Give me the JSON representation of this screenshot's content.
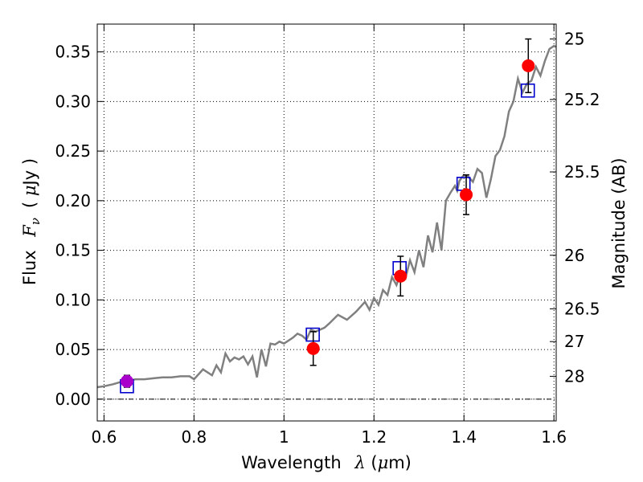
{
  "chart_data": {
    "type": "scatter",
    "title": "",
    "xlabel": {
      "prefix": "Wavelength",
      "symbol": "λ",
      "unit_open": " (",
      "unit_mu": "μ",
      "unit_rest": "m)"
    },
    "ylabel": {
      "prefix": "Flux",
      "symbol": "F",
      "sub": "ν",
      "unit_open": "( ",
      "unit_mu": "μ",
      "unit_rest": "Jy )"
    },
    "y2label": "Magnitude (AB)",
    "xlim": [
      0.585,
      1.605
    ],
    "ylim": [
      -0.022,
      0.378
    ],
    "x_ticks": [
      0.6,
      0.8,
      1.0,
      1.2,
      1.4,
      1.6
    ],
    "x_tick_labels": [
      "0.6",
      "0.8",
      "1",
      "1.2",
      "1.4",
      "1.6"
    ],
    "y_ticks": [
      0.0,
      0.05,
      0.1,
      0.15,
      0.2,
      0.25,
      0.3,
      0.35
    ],
    "y_tick_labels": [
      "0.00",
      "0.05",
      "0.10",
      "0.15",
      "0.20",
      "0.25",
      "0.30",
      "0.35"
    ],
    "mag_ticks": [
      {
        "label": "25",
        "flux": 0.363
      },
      {
        "label": "25.2",
        "flux": 0.302
      },
      {
        "label": "25.5",
        "flux": 0.229
      },
      {
        "label": "26",
        "flux": 0.145
      },
      {
        "label": "26.5",
        "flux": 0.091
      },
      {
        "label": "27",
        "flux": 0.058
      },
      {
        "label": "28",
        "flux": 0.023
      }
    ],
    "grid": true,
    "zero_line": true,
    "colors": {
      "model": "#808080",
      "observed": "#ff0000",
      "synthetic": "#0000cc",
      "error_bar": "#000000",
      "purple_point": "#aa00cc"
    },
    "model_spectrum": {
      "x": [
        0.585,
        0.6,
        0.62,
        0.635,
        0.65,
        0.66,
        0.67,
        0.69,
        0.71,
        0.73,
        0.75,
        0.77,
        0.79,
        0.8,
        0.82,
        0.84,
        0.85,
        0.86,
        0.87,
        0.88,
        0.89,
        0.9,
        0.91,
        0.92,
        0.93,
        0.94,
        0.95,
        0.96,
        0.97,
        0.98,
        0.99,
        1.0,
        1.02,
        1.03,
        1.04,
        1.05,
        1.06,
        1.07,
        1.09,
        1.1,
        1.12,
        1.14,
        1.16,
        1.18,
        1.19,
        1.2,
        1.21,
        1.22,
        1.23,
        1.24,
        1.25,
        1.26,
        1.27,
        1.28,
        1.29,
        1.3,
        1.31,
        1.32,
        1.33,
        1.34,
        1.35,
        1.36,
        1.37,
        1.38,
        1.385,
        1.39,
        1.4,
        1.41,
        1.42,
        1.43,
        1.44,
        1.45,
        1.46,
        1.47,
        1.48,
        1.49,
        1.5,
        1.51,
        1.52,
        1.53,
        1.54,
        1.55,
        1.56,
        1.57,
        1.58,
        1.59,
        1.6,
        1.605
      ],
      "y": [
        0.012,
        0.013,
        0.015,
        0.017,
        0.018,
        0.019,
        0.02,
        0.02,
        0.021,
        0.022,
        0.022,
        0.023,
        0.023,
        0.02,
        0.03,
        0.024,
        0.034,
        0.027,
        0.046,
        0.038,
        0.042,
        0.04,
        0.043,
        0.035,
        0.043,
        0.022,
        0.05,
        0.033,
        0.056,
        0.055,
        0.058,
        0.056,
        0.062,
        0.066,
        0.064,
        0.06,
        0.07,
        0.068,
        0.072,
        0.076,
        0.085,
        0.08,
        0.088,
        0.098,
        0.09,
        0.102,
        0.095,
        0.11,
        0.105,
        0.123,
        0.115,
        0.128,
        0.122,
        0.14,
        0.128,
        0.15,
        0.133,
        0.165,
        0.148,
        0.178,
        0.15,
        0.2,
        0.208,
        0.215,
        0.21,
        0.22,
        0.226,
        0.224,
        0.219,
        0.232,
        0.228,
        0.203,
        0.222,
        0.245,
        0.251,
        0.265,
        0.29,
        0.3,
        0.323,
        0.309,
        0.318,
        0.321,
        0.335,
        0.326,
        0.341,
        0.353,
        0.356,
        0.355
      ]
    },
    "observed": [
      {
        "x": 0.651,
        "y": 0.018,
        "yerr": 0.006
      },
      {
        "x": 1.065,
        "y": 0.051,
        "yerr": 0.017
      },
      {
        "x": 1.259,
        "y": 0.124,
        "yerr": 0.02
      },
      {
        "x": 1.405,
        "y": 0.206,
        "yerr": 0.02
      },
      {
        "x": 1.543,
        "y": 0.336,
        "yerr": 0.027
      }
    ],
    "synthetic": [
      {
        "x": 0.651,
        "y": 0.013
      },
      {
        "x": 1.064,
        "y": 0.065
      },
      {
        "x": 1.257,
        "y": 0.132
      },
      {
        "x": 1.399,
        "y": 0.217
      },
      {
        "x": 1.542,
        "y": 0.311
      }
    ]
  }
}
